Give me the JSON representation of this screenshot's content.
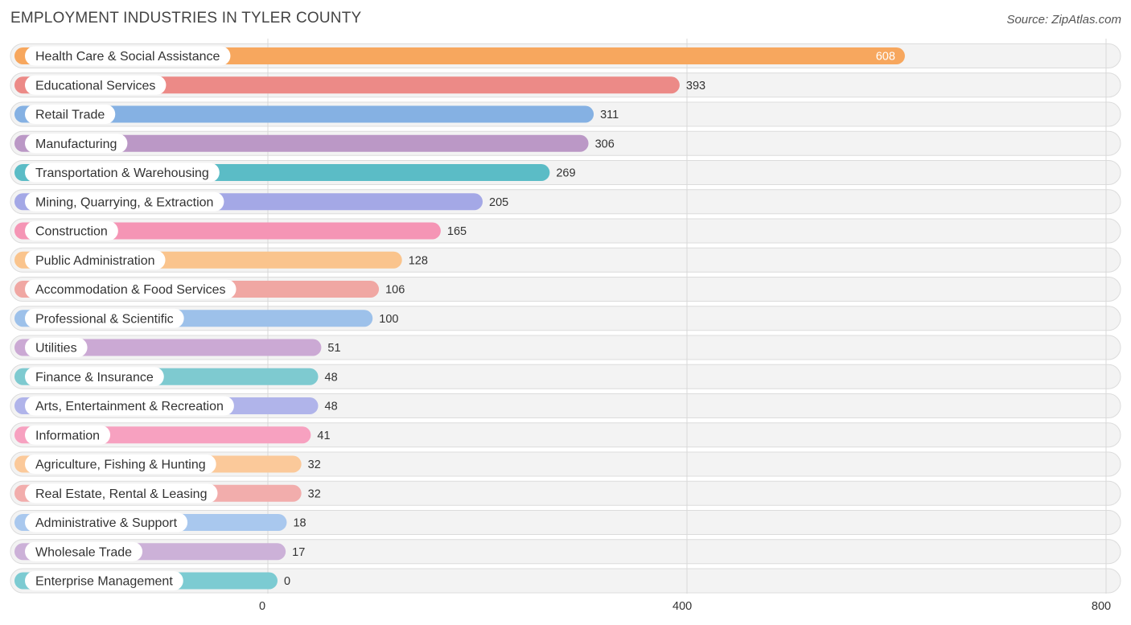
{
  "title": "EMPLOYMENT INDUSTRIES IN TYLER COUNTY",
  "source": "Source: ZipAtlas.com",
  "chart_data": {
    "type": "bar",
    "orientation": "horizontal",
    "title": "EMPLOYMENT INDUSTRIES IN TYLER COUNTY",
    "xlabel": "",
    "ylabel": "",
    "xlim": [
      0,
      800
    ],
    "x_ticks": [
      0,
      400,
      800
    ],
    "x_tick_labels": [
      "0",
      "400",
      "800"
    ],
    "grid": true,
    "categories": [
      "Health Care & Social Assistance",
      "Educational Services",
      "Retail Trade",
      "Manufacturing",
      "Transportation & Warehousing",
      "Mining, Quarrying, & Extraction",
      "Construction",
      "Public Administration",
      "Accommodation & Food Services",
      "Professional & Scientific",
      "Utilities",
      "Finance & Insurance",
      "Arts, Entertainment & Recreation",
      "Information",
      "Agriculture, Fishing & Hunting",
      "Real Estate, Rental & Leasing",
      "Administrative & Support",
      "Wholesale Trade",
      "Enterprise Management"
    ],
    "values": [
      608,
      393,
      311,
      306,
      269,
      205,
      165,
      128,
      106,
      100,
      51,
      48,
      48,
      41,
      32,
      32,
      18,
      17,
      0
    ],
    "colors": [
      "#f7a75e",
      "#ec8a87",
      "#85b1e3",
      "#bb98c6",
      "#5bbcc6",
      "#a4a8e6",
      "#f595b5",
      "#fac48d",
      "#f0a7a3",
      "#9dc1ea",
      "#cba9d4",
      "#7ecad0",
      "#b0b4ea",
      "#f7a1c0",
      "#fbc99a",
      "#f2adac",
      "#a9c8ee",
      "#ccb1d8",
      "#7ccbd2"
    ]
  }
}
